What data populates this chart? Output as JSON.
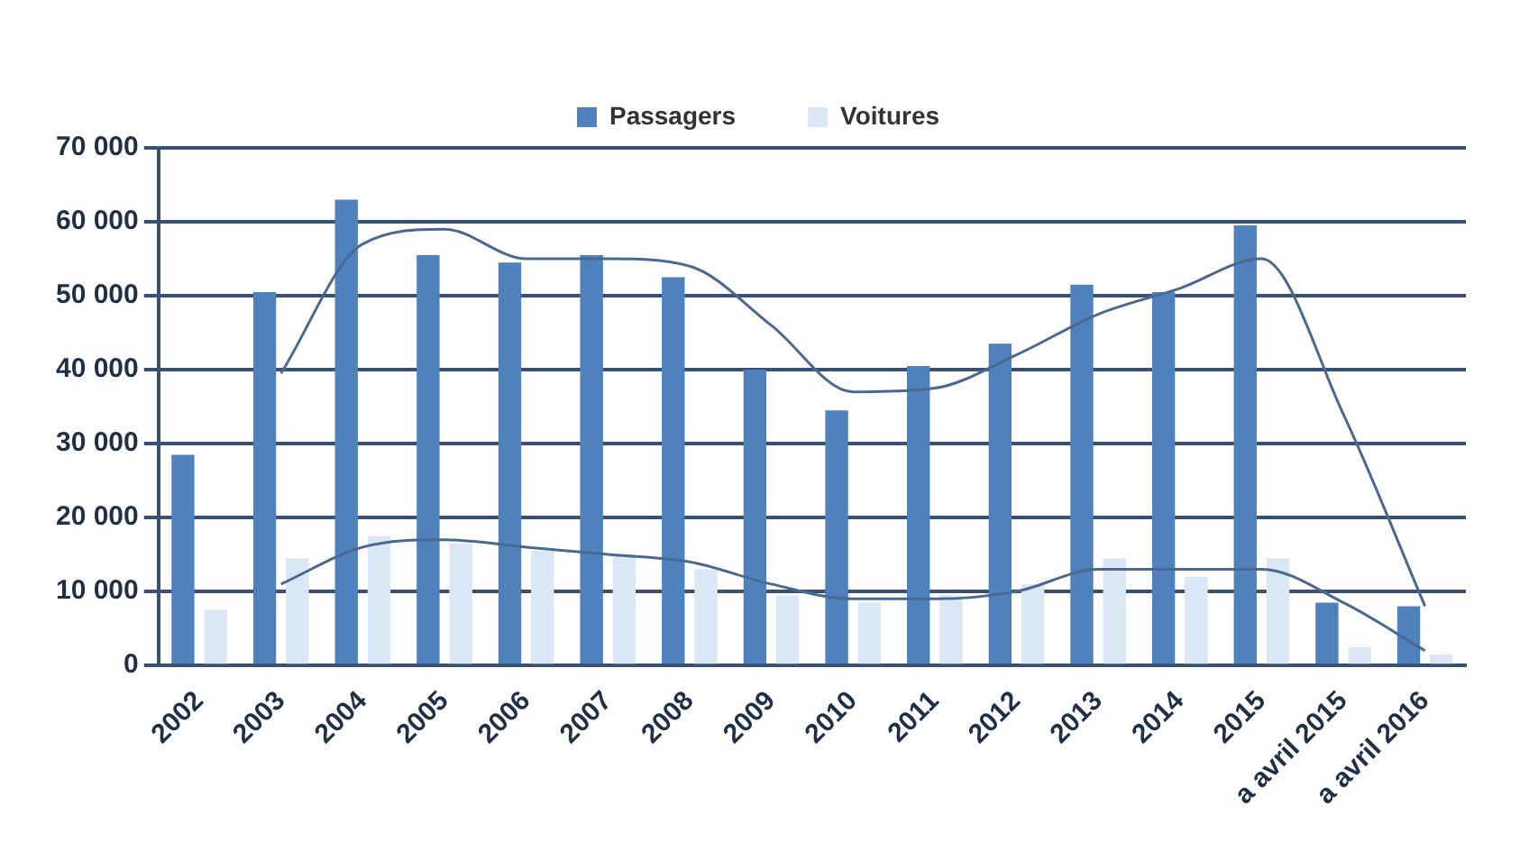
{
  "chart_data": {
    "type": "bar",
    "categories": [
      "2002",
      "2003",
      "2004",
      "2005",
      "2006",
      "2007",
      "2008",
      "2009",
      "2010",
      "2011",
      "2012",
      "2013",
      "2014",
      "2015",
      "a avril 2015",
      "a avril 2016"
    ],
    "series": [
      {
        "name": "Passagers",
        "color": "#4f81bd",
        "values": [
          28500,
          50500,
          63000,
          55500,
          54500,
          55500,
          52500,
          40000,
          34500,
          40500,
          43500,
          51500,
          50500,
          59500,
          8500,
          8000
        ]
      },
      {
        "name": "Voitures",
        "color": "#dbe7f5",
        "values": [
          7500,
          14500,
          17500,
          16500,
          15500,
          15000,
          13000,
          9500,
          8500,
          9500,
          11000,
          14500,
          12000,
          14500,
          2500,
          1500
        ]
      },
      {
        "type": "line",
        "color": "#4a6890",
        "values": [
          null,
          39500,
          57000,
          59000,
          55000,
          55000,
          54000,
          46000,
          37000,
          37500,
          42000,
          47500,
          51000,
          55000,
          34000,
          8000
        ]
      },
      {
        "type": "line",
        "color": "#4a6890",
        "values": [
          null,
          11000,
          16000,
          17000,
          16000,
          15000,
          14000,
          11000,
          9000,
          9000,
          10000,
          13000,
          13000,
          13000,
          8500,
          2000
        ]
      }
    ],
    "ylim": [
      0,
      70000
    ],
    "yticks": [
      {
        "value": 0,
        "label": "0"
      },
      {
        "value": 10000,
        "label": "10 000"
      },
      {
        "value": 20000,
        "label": "20 000"
      },
      {
        "value": 30000,
        "label": "30 000"
      },
      {
        "value": 40000,
        "label": "40 000"
      },
      {
        "value": 50000,
        "label": "50 000"
      },
      {
        "value": 60000,
        "label": "60 000"
      },
      {
        "value": 70000,
        "label": "70 000"
      }
    ],
    "grid": "y",
    "legend": "top",
    "marker": "none",
    "line_style": "solid"
  }
}
